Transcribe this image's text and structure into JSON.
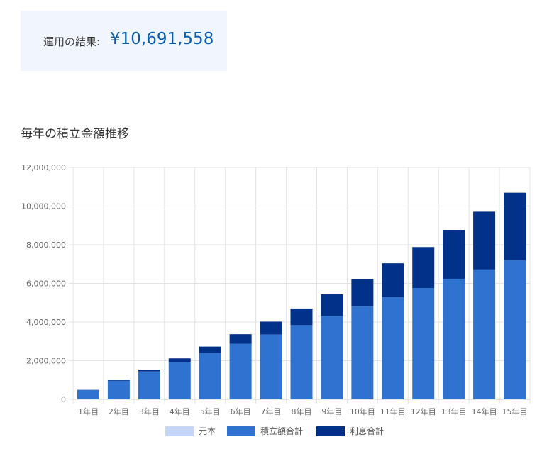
{
  "result": {
    "label": "運用の結果:",
    "value": "¥10,691,558"
  },
  "chart_data": {
    "type": "bar",
    "stacked": true,
    "title": "毎年の積立金額推移",
    "categories": [
      "1年目",
      "2年目",
      "3年目",
      "4年目",
      "5年目",
      "6年目",
      "7年目",
      "8年目",
      "9年目",
      "10年目",
      "11年目",
      "12年目",
      "13年目",
      "14年目",
      "15年目"
    ],
    "y_ticks": [
      "0",
      "2,000,000",
      "4,000,000",
      "6,000,000",
      "8,000,000",
      "10,000,000",
      "12,000,000"
    ],
    "ylim": [
      0,
      12000000
    ],
    "grid": true,
    "legend_position": "bottom",
    "series": [
      {
        "name": "元本",
        "color": "#c5d5fb",
        "values": [
          0,
          0,
          0,
          0,
          0,
          0,
          0,
          0,
          0,
          0,
          0,
          0,
          0,
          0,
          0
        ]
      },
      {
        "name": "積立額合計",
        "color": "#2f72cf",
        "values": [
          480000,
          960000,
          1440000,
          1920000,
          2400000,
          2880000,
          3360000,
          3840000,
          4320000,
          4800000,
          5280000,
          5760000,
          6240000,
          6720000,
          7200000
        ]
      },
      {
        "name": "利息合計",
        "color": "#013189",
        "values": [
          10000,
          50000,
          100000,
          200000,
          330000,
          490000,
          660000,
          860000,
          1110000,
          1420000,
          1760000,
          2120000,
          2530000,
          2990000,
          3491558
        ]
      }
    ]
  }
}
